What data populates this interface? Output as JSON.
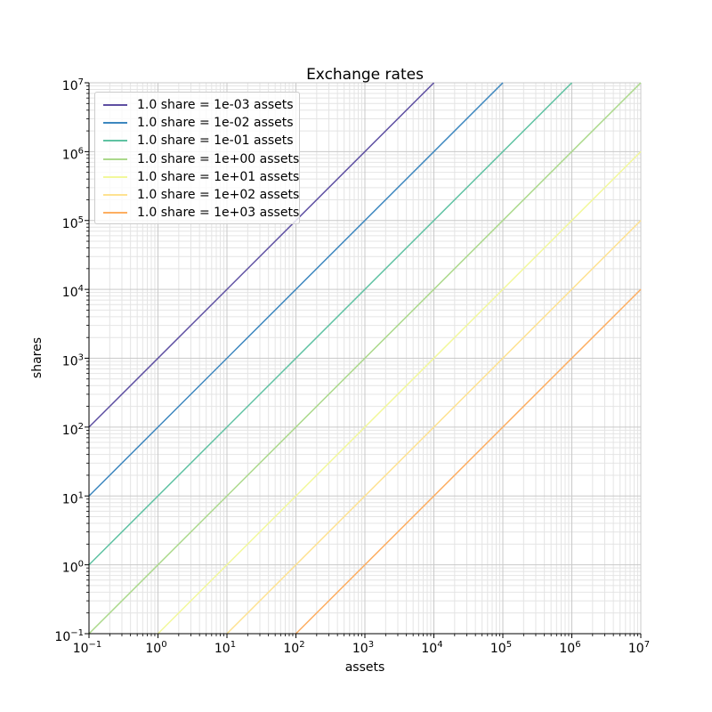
{
  "figure": {
    "background": "#ffffff"
  },
  "chart_data": {
    "type": "line",
    "title": "Exchange rates",
    "xlabel": "assets",
    "ylabel": "shares",
    "xscale": "log",
    "yscale": "log",
    "xlim": [
      0.1,
      10000000
    ],
    "ylim": [
      0.1,
      10000000
    ],
    "x_tick_exponents": [
      -1,
      0,
      1,
      2,
      3,
      4,
      5,
      6,
      7
    ],
    "y_tick_exponents": [
      -1,
      0,
      1,
      2,
      3,
      4,
      5,
      6,
      7
    ],
    "grid": "both",
    "legend_position": "upper left",
    "grid_colors": {
      "major": "#c9c9c9",
      "minor": "#e4e4e4"
    },
    "spine_color": "#000000",
    "text_color": "#000000",
    "series": [
      {
        "label": "1.0 share = 1e-03 assets",
        "assets_per_share": 0.001,
        "color": "#5e4fa2",
        "x": [
          0.1,
          10000
        ],
        "y": [
          100,
          10000000
        ]
      },
      {
        "label": "1.0 share = 1e-02 assets",
        "assets_per_share": 0.01,
        "color": "#3d87bf",
        "x": [
          0.1,
          100000
        ],
        "y": [
          10,
          10000000
        ]
      },
      {
        "label": "1.0 share = 1e-01 assets",
        "assets_per_share": 0.1,
        "color": "#5fc2a2",
        "x": [
          0.1,
          1000000
        ],
        "y": [
          1,
          10000000
        ]
      },
      {
        "label": "1.0 share = 1e+00 assets",
        "assets_per_share": 1.0,
        "color": "#abd98b",
        "x": [
          0.1,
          10000000
        ],
        "y": [
          0.1,
          10000000
        ]
      },
      {
        "label": "1.0 share = 1e+01 assets",
        "assets_per_share": 10.0,
        "color": "#f2f89b",
        "x": [
          1,
          10000000
        ],
        "y": [
          0.1,
          1000000
        ]
      },
      {
        "label": "1.0 share = 1e+02 assets",
        "assets_per_share": 100.0,
        "color": "#fee291",
        "x": [
          10,
          10000000
        ],
        "y": [
          0.1,
          100000
        ]
      },
      {
        "label": "1.0 share = 1e+03 assets",
        "assets_per_share": 1000.0,
        "color": "#fdae61",
        "x": [
          100,
          10000000
        ],
        "y": [
          0.1,
          10000
        ]
      }
    ]
  }
}
